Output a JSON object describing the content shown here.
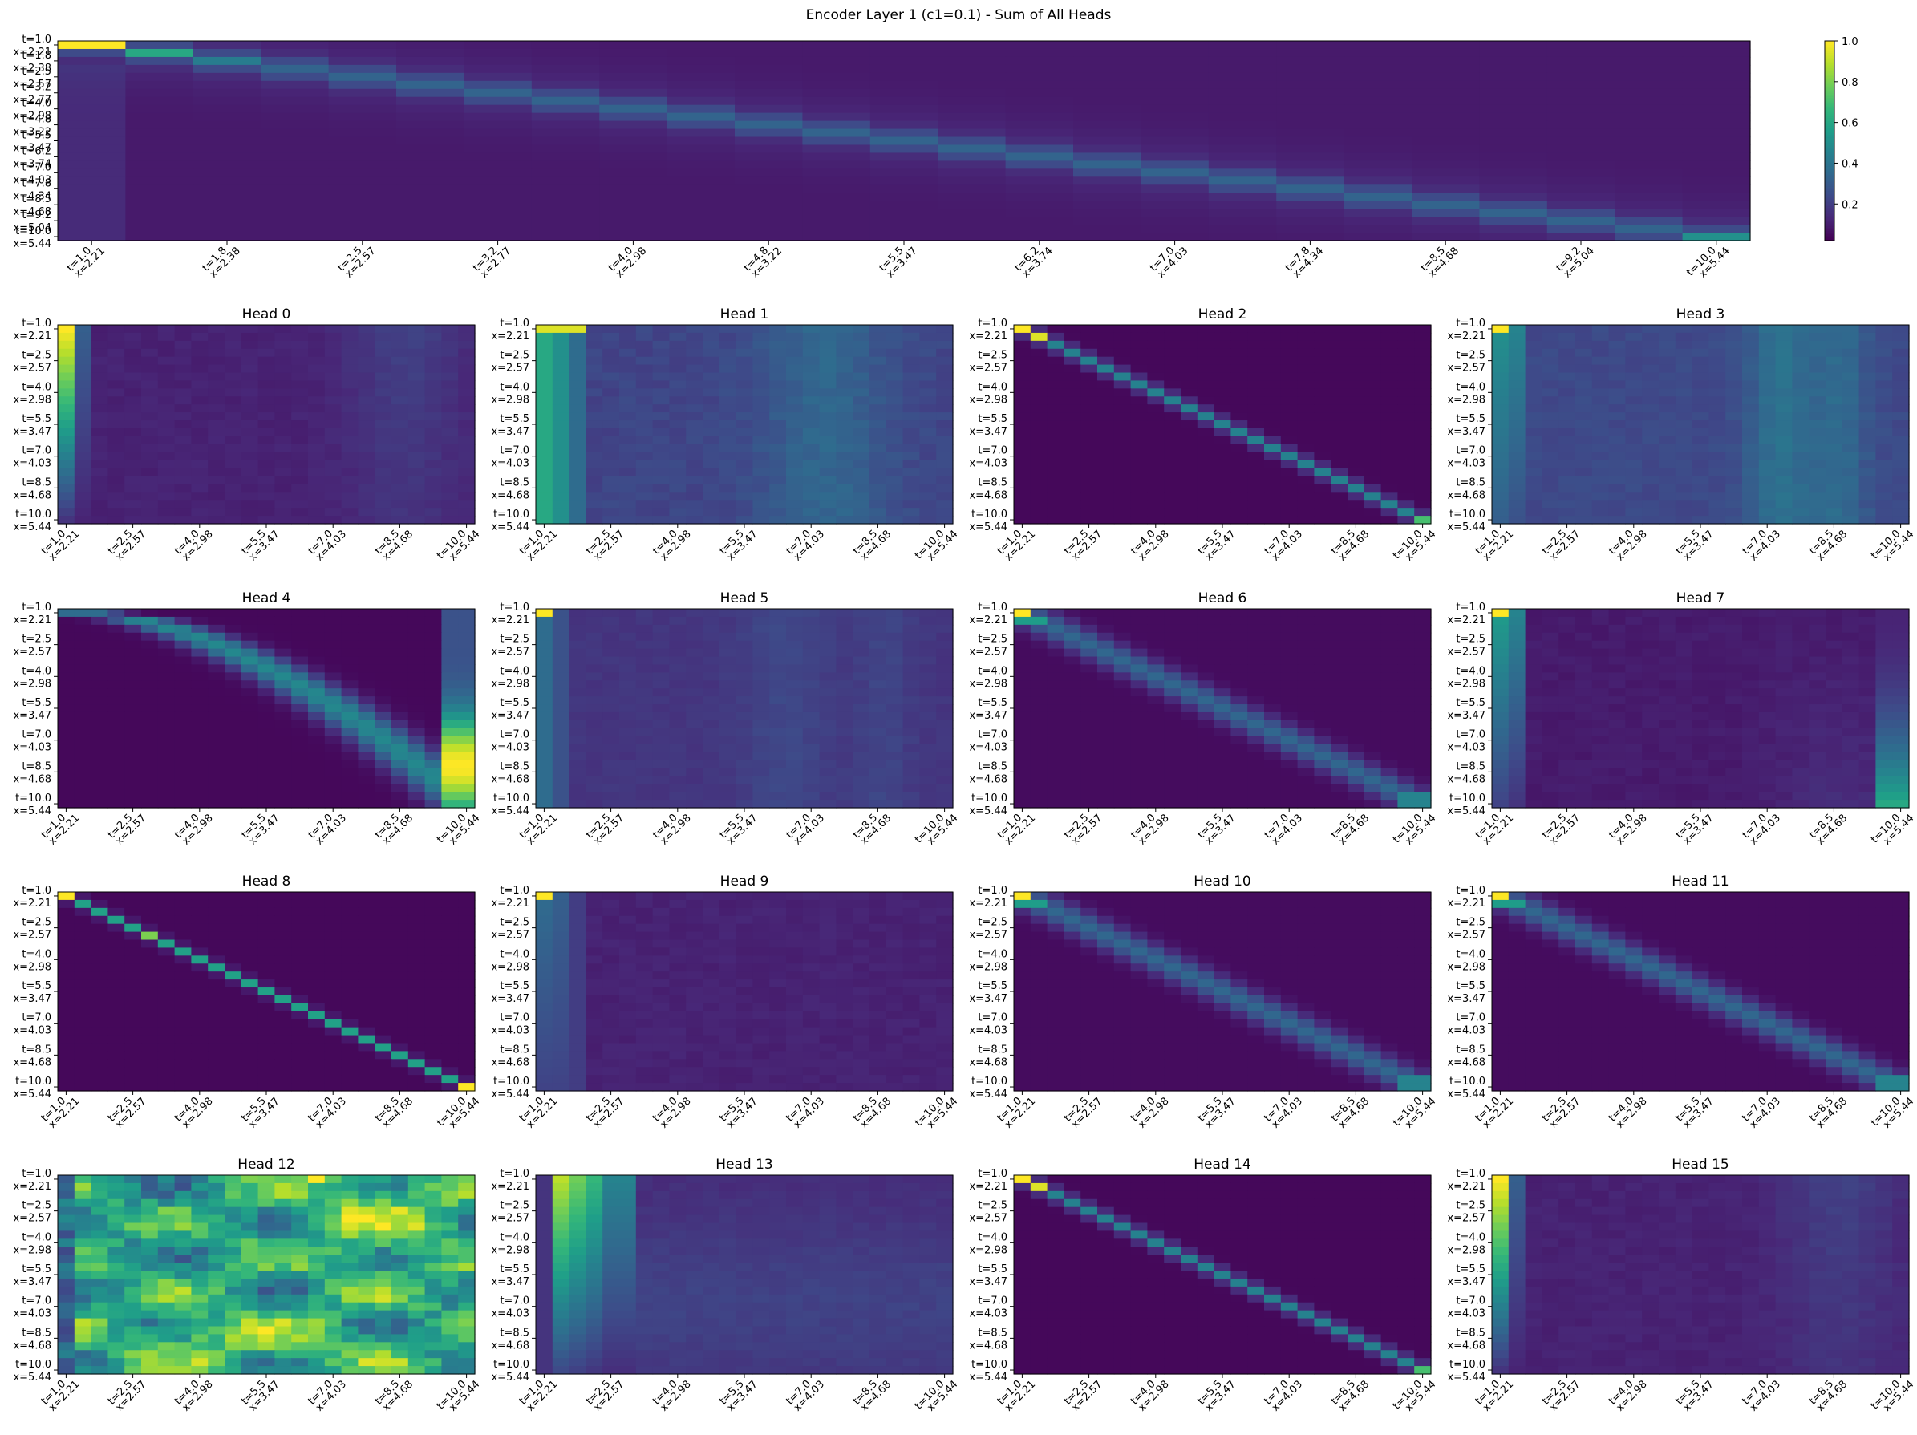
{
  "figure": {
    "title": "Encoder Layer 1 (c1=0.1) - Sum of All Heads"
  },
  "colorbar": {
    "ticks": [
      "0.2",
      "0.4",
      "0.6",
      "0.8",
      "1.0"
    ],
    "tick_values": [
      0.2,
      0.4,
      0.6,
      0.8,
      1.0
    ],
    "range": [
      0.02,
      1.0
    ],
    "colormap": "viridis"
  },
  "chart_data": [
    {
      "type": "heatmap",
      "id": "sum",
      "title": "",
      "n": 25,
      "pattern": "sum",
      "value_range": [
        0,
        1
      ],
      "tick_indices": [
        0,
        2,
        4,
        6,
        8,
        10,
        12,
        14,
        16,
        18,
        20,
        22,
        24
      ],
      "tick_t": [
        "1.0",
        "1.8",
        "2.5",
        "3.2",
        "4.0",
        "4.8",
        "5.5",
        "6.2",
        "7.0",
        "7.8",
        "8.5",
        "9.2",
        "10.0"
      ],
      "tick_x": [
        "2.21",
        "2.38",
        "2.57",
        "2.77",
        "2.98",
        "3.22",
        "3.47",
        "3.74",
        "4.03",
        "4.34",
        "4.68",
        "5.04",
        "5.44"
      ]
    },
    {
      "type": "heatmap",
      "id": "head0",
      "title": "Head 0",
      "n": 25,
      "pattern": "first_column_fade",
      "value_range": [
        0,
        1
      ]
    },
    {
      "type": "heatmap",
      "id": "head1",
      "title": "Head 1",
      "n": 25,
      "pattern": "first_column_stripes",
      "value_range": [
        0,
        1
      ]
    },
    {
      "type": "heatmap",
      "id": "head2",
      "title": "Head 2",
      "n": 25,
      "pattern": "diagonal_narrow",
      "value_range": [
        0,
        1
      ]
    },
    {
      "type": "heatmap",
      "id": "head3",
      "title": "Head 3",
      "n": 25,
      "pattern": "first_column_late_stripes",
      "value_range": [
        0,
        1
      ]
    },
    {
      "type": "heatmap",
      "id": "head4",
      "title": "Head 4",
      "n": 25,
      "pattern": "curved_band_to_last_column",
      "value_range": [
        0,
        1
      ]
    },
    {
      "type": "heatmap",
      "id": "head5",
      "title": "Head 5",
      "n": 25,
      "pattern": "weak_columns",
      "value_range": [
        0,
        1
      ]
    },
    {
      "type": "heatmap",
      "id": "head6",
      "title": "Head 6",
      "n": 25,
      "pattern": "diagonal_wide",
      "value_range": [
        0,
        1
      ]
    },
    {
      "type": "heatmap",
      "id": "head7",
      "title": "Head 7",
      "n": 25,
      "pattern": "first_and_last_column",
      "value_range": [
        0,
        1
      ]
    },
    {
      "type": "heatmap",
      "id": "head8",
      "title": "Head 8",
      "n": 25,
      "pattern": "diagonal_sharp",
      "value_range": [
        0,
        1
      ]
    },
    {
      "type": "heatmap",
      "id": "head9",
      "title": "Head 9",
      "n": 25,
      "pattern": "first_column_weak",
      "value_range": [
        0,
        1
      ]
    },
    {
      "type": "heatmap",
      "id": "head10",
      "title": "Head 10",
      "n": 25,
      "pattern": "diagonal_wide",
      "value_range": [
        0,
        1
      ]
    },
    {
      "type": "heatmap",
      "id": "head11",
      "title": "Head 11",
      "n": 25,
      "pattern": "diagonal_wide",
      "value_range": [
        0,
        1
      ]
    },
    {
      "type": "heatmap",
      "id": "head12",
      "title": "Head 12",
      "n": 25,
      "pattern": "diffuse_high",
      "value_range": [
        0,
        1
      ]
    },
    {
      "type": "heatmap",
      "id": "head13",
      "title": "Head 13",
      "n": 25,
      "pattern": "early_columns_bright",
      "value_range": [
        0,
        1
      ]
    },
    {
      "type": "heatmap",
      "id": "head14",
      "title": "Head 14",
      "n": 25,
      "pattern": "diagonal_narrow",
      "value_range": [
        0,
        1
      ]
    },
    {
      "type": "heatmap",
      "id": "head15",
      "title": "Head 15",
      "n": 25,
      "pattern": "first_column_fade",
      "value_range": [
        0,
        1
      ]
    }
  ],
  "head_ticks": {
    "tick_indices": [
      0,
      4,
      8,
      12,
      16,
      20,
      24
    ],
    "tick_t": [
      "1.0",
      "2.5",
      "4.0",
      "5.5",
      "7.0",
      "8.5",
      "10.0"
    ],
    "tick_x": [
      "2.21",
      "2.57",
      "2.98",
      "3.47",
      "4.03",
      "4.68",
      "5.44"
    ]
  }
}
